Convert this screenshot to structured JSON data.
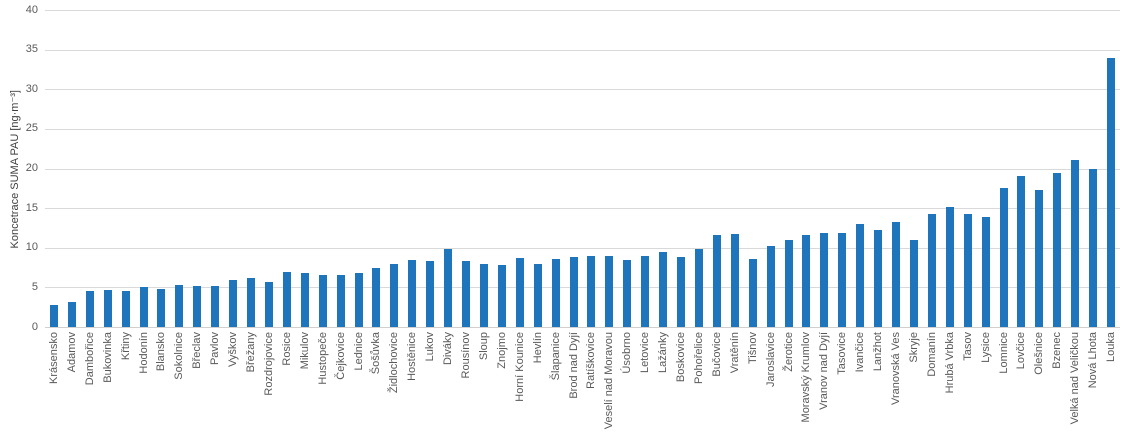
{
  "colors": {
    "bar": "#1f75bb",
    "grid": "#d9d9d9",
    "axis_text": "#595959",
    "axis_title_text": "#404040"
  },
  "chart_data": {
    "type": "bar",
    "title": "",
    "xlabel": "",
    "ylabel": "Koncetrace SUMA PAU [ng·m⁻³]",
    "ylim": [
      0,
      40
    ],
    "yticks": [
      0,
      5,
      10,
      15,
      20,
      25,
      30,
      35,
      40
    ],
    "grid": true,
    "legend_position": "none",
    "categories": [
      "Krásensko",
      "Adamov",
      "Dambořice",
      "Bukovinka",
      "Křtiny",
      "Hodonín",
      "Blansko",
      "Sokolnice",
      "Břeclav",
      "Pavlov",
      "Vyškov",
      "Břežany",
      "Rozdrojovice",
      "Rosice",
      "Mikulov",
      "Hustopeče",
      "Čejkovice",
      "Lednice",
      "Šošůvka",
      "Židlochovice",
      "Hostěnice",
      "Lukov",
      "Diváky",
      "Rousínov",
      "Sloup",
      "Znojmo",
      "Horní Kounice",
      "Hevlín",
      "Šlapanice",
      "Brod nad Dyjí",
      "Ratíškovice",
      "Veselí nad Moravou",
      "Úsobrno",
      "Letovice",
      "Lažánky",
      "Boskovice",
      "Pohořelice",
      "Bučovice",
      "Vratěnín",
      "Tišnov",
      "Jaroslavice",
      "Žerotice",
      "Moravský Krumlov",
      "Vranov nad Dyjí",
      "Tasovice",
      "Ivančice",
      "Lanžhot",
      "Vranovská Ves",
      "Skryje",
      "Domanín",
      "Hrubá Vrbka",
      "Tasov",
      "Lysice",
      "Lomnice",
      "Lovčice",
      "Olešnice",
      "Bzenec",
      "Velká nad Veličkou",
      "Nová Lhota",
      "Louka"
    ],
    "values": [
      2.8,
      3.1,
      4.5,
      4.7,
      4.5,
      5.0,
      4.8,
      5.3,
      5.2,
      5.2,
      5.9,
      6.2,
      5.7,
      7.0,
      6.8,
      6.6,
      6.5,
      6.8,
      7.4,
      7.9,
      8.5,
      8.3,
      9.8,
      8.3,
      7.9,
      7.8,
      8.7,
      8.0,
      8.6,
      8.8,
      9.0,
      8.9,
      8.5,
      9.0,
      9.5,
      8.8,
      9.9,
      11.6,
      11.7,
      8.6,
      10.2,
      11.0,
      11.6,
      11.8,
      11.8,
      13.0,
      12.3,
      13.2,
      11.0,
      14.2,
      15.2,
      14.3,
      13.9,
      17.6,
      19.1,
      17.3,
      19.4,
      21.1,
      20.0,
      34.0
    ]
  }
}
